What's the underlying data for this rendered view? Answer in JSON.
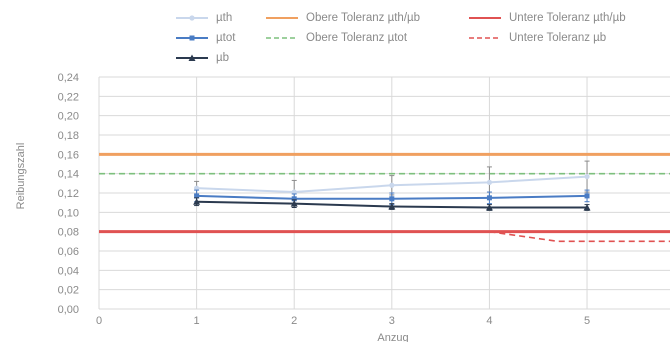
{
  "chart_data": {
    "type": "line",
    "title": "",
    "xlabel": "Anzug",
    "ylabel": "Reibungszahl",
    "xlim": [
      0,
      5.85
    ],
    "ylim": [
      0,
      0.24
    ],
    "x_ticks": [
      0,
      1,
      2,
      3,
      4,
      5
    ],
    "x_tick_labels": [
      "0",
      "1",
      "2",
      "3",
      "4",
      "5"
    ],
    "y_ticks": [
      0,
      0.02,
      0.04,
      0.06,
      0.08,
      0.1,
      0.12,
      0.14,
      0.16,
      0.18,
      0.2,
      0.22,
      0.24
    ],
    "y_tick_labels": [
      "0,00",
      "0,02",
      "0,04",
      "0,06",
      "0,08",
      "0,10",
      "0,12",
      "0,14",
      "0,16",
      "0,18",
      "0,20",
      "0,22",
      "0,24"
    ],
    "grid": true,
    "legend_position": "top",
    "series": [
      {
        "name": "µth",
        "color": "#c9d7ec",
        "marker": "circle",
        "x": [
          1,
          2,
          3,
          4,
          5
        ],
        "values": [
          0.125,
          0.121,
          0.128,
          0.131,
          0.137
        ],
        "error": [
          0.007,
          0.012,
          0.01,
          0.016,
          0.016
        ]
      },
      {
        "name": "µtot",
        "color": "#4a7cc4",
        "marker": "square",
        "x": [
          1,
          2,
          3,
          4,
          5
        ],
        "values": [
          0.117,
          0.114,
          0.114,
          0.115,
          0.117
        ],
        "error": [
          0.006,
          0.005,
          0.006,
          0.006,
          0.006
        ]
      },
      {
        "name": "µb",
        "color": "#2b3a4f",
        "marker": "triangle",
        "x": [
          1,
          2,
          3,
          4,
          5
        ],
        "values": [
          0.111,
          0.109,
          0.106,
          0.105,
          0.105
        ],
        "error": [
          0.004,
          0.004,
          0.003,
          0.003,
          0.003
        ]
      }
    ],
    "reference_lines": [
      {
        "name": "Obere Toleranz µth/µb",
        "color": "#f0a060",
        "style": "solid",
        "x": [
          0,
          5.85
        ],
        "values": [
          0.16,
          0.16
        ]
      },
      {
        "name": "Obere Toleranz µtot",
        "color": "#7dc07d",
        "style": "dashed",
        "x": [
          0,
          5.85
        ],
        "values": [
          0.14,
          0.14
        ]
      },
      {
        "name": "Untere Toleranz µth/µb",
        "color": "#e05252",
        "style": "solid",
        "x": [
          0,
          5.85
        ],
        "values": [
          0.08,
          0.08
        ]
      },
      {
        "name": "Untere Toleranz µb",
        "color": "#e05252",
        "style": "dashed",
        "x": [
          4,
          4.7,
          5.85
        ],
        "values": [
          0.08,
          0.07,
          0.07
        ]
      }
    ]
  }
}
